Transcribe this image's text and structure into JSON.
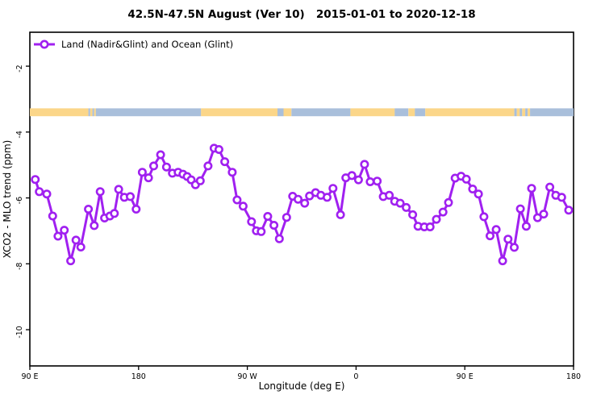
{
  "header": {
    "title": "42.5N-47.5N August (Ver 10)   2015-01-01 to 2020-12-18"
  },
  "legend": {
    "label": "Land (Nadir&Glint) and Ocean (Glint)"
  },
  "axes": {
    "xlabel": "Longitude (deg E)",
    "ylabel": "XCO2 - MLO trend (ppm)",
    "x_ticks": [
      {
        "lon": 90,
        "label": "90 E"
      },
      {
        "lon": 180,
        "label": "180"
      },
      {
        "lon": 270,
        "label": "90 W"
      },
      {
        "lon": 360,
        "label": "0"
      },
      {
        "lon": 450,
        "label": "90 E"
      },
      {
        "lon": 540,
        "label": "180"
      }
    ],
    "y_ticks": [
      {
        "value": -2,
        "label": "-2"
      },
      {
        "value": -4,
        "label": "-4"
      },
      {
        "value": -6,
        "label": "-6"
      },
      {
        "value": -8,
        "label": "-8"
      },
      {
        "value": -10,
        "label": "-10"
      }
    ]
  },
  "colors": {
    "series": "#A020F0",
    "marker_fill": "#FFFFFF",
    "band_land": "#FBD689",
    "band_ocean": "#A9BFDB",
    "axis": "#000000"
  },
  "chart_data": {
    "type": "line",
    "title": "42.5N-47.5N August (Ver 10)   2015-01-01 to 2020-12-18",
    "xlabel": "Longitude (deg E)",
    "ylabel": "XCO2 - MLO trend (ppm)",
    "xlim": [
      90,
      540
    ],
    "ylim": [
      -11.1,
      -0.97
    ],
    "grid": false,
    "legend_position": "top-left",
    "marker": "open-circle",
    "series": [
      {
        "name": "Land (Nadir&Glint) and Ocean (Glint)",
        "x": [
          94.5,
          97.8,
          104.0,
          108.9,
          113.3,
          118.5,
          123.8,
          128.2,
          132.2,
          138.5,
          143.3,
          148.2,
          151.8,
          156.2,
          160.0,
          163.5,
          168.2,
          173.1,
          178.0,
          183.1,
          188.2,
          192.5,
          198.2,
          203.1,
          208.0,
          212.7,
          216.7,
          220.2,
          223.5,
          227.1,
          231.1,
          237.5,
          242.5,
          246.5,
          251.3,
          257.5,
          261.5,
          266.5,
          273.5,
          277.5,
          281.5,
          286.9,
          292.0,
          296.5,
          302.5,
          307.5,
          312.0,
          317.5,
          321.5,
          326.5,
          330.9,
          336.0,
          340.9,
          347.1,
          351.5,
          356.5,
          362.0,
          367.0,
          371.7,
          377.5,
          382.5,
          387.5,
          392.0,
          396.5,
          401.5,
          406.9,
          411.3,
          416.5,
          421.3,
          426.5,
          432.0,
          436.5,
          442.0,
          446.9,
          451.3,
          456.5,
          461.3,
          465.8,
          470.9,
          476.0,
          481.3,
          485.8,
          490.9,
          496.0,
          500.9,
          505.3,
          510.2,
          515.3,
          520.4,
          525.3,
          530.2,
          536.0
        ],
        "values": [
          -5.44,
          -5.81,
          -5.88,
          -6.55,
          -7.16,
          -6.98,
          -7.91,
          -7.28,
          -7.49,
          -6.34,
          -6.84,
          -5.81,
          -6.61,
          -6.55,
          -6.47,
          -5.74,
          -5.98,
          -5.96,
          -6.34,
          -5.22,
          -5.39,
          -5.03,
          -4.69,
          -5.06,
          -5.25,
          -5.22,
          -5.28,
          -5.35,
          -5.45,
          -5.6,
          -5.48,
          -5.03,
          -4.49,
          -4.53,
          -4.9,
          -5.22,
          -6.06,
          -6.25,
          -6.72,
          -7.0,
          -7.02,
          -6.56,
          -6.83,
          -7.24,
          -6.59,
          -5.95,
          -6.04,
          -6.16,
          -5.94,
          -5.84,
          -5.92,
          -5.98,
          -5.71,
          -6.51,
          -5.39,
          -5.32,
          -5.45,
          -4.98,
          -5.51,
          -5.49,
          -5.96,
          -5.92,
          -6.1,
          -6.16,
          -6.29,
          -6.51,
          -6.86,
          -6.88,
          -6.88,
          -6.65,
          -6.43,
          -6.14,
          -5.4,
          -5.34,
          -5.43,
          -5.73,
          -5.88,
          -6.57,
          -7.15,
          -6.96,
          -7.91,
          -7.25,
          -7.5,
          -6.33,
          -6.86,
          -5.71,
          -6.6,
          -6.49,
          -5.67,
          -5.92,
          -5.98,
          -6.37
        ]
      }
    ],
    "surface_type_band": {
      "description": "horizontal strip showing land (tan) vs ocean (blue) along longitude",
      "value_top": -3.28,
      "value_bottom": -3.52,
      "segments": [
        {
          "from": 90,
          "to": 138.5,
          "type": "land"
        },
        {
          "from": 138.5,
          "to": 140.0,
          "type": "ocean"
        },
        {
          "from": 140.0,
          "to": 141.8,
          "type": "land"
        },
        {
          "from": 141.8,
          "to": 143.2,
          "type": "ocean"
        },
        {
          "from": 143.2,
          "to": 144.6,
          "type": "land"
        },
        {
          "from": 144.6,
          "to": 231.7,
          "type": "ocean"
        },
        {
          "from": 231.7,
          "to": 295.0,
          "type": "land"
        },
        {
          "from": 295.0,
          "to": 300.0,
          "type": "ocean"
        },
        {
          "from": 300.0,
          "to": 306.5,
          "type": "land"
        },
        {
          "from": 306.5,
          "to": 355.3,
          "type": "ocean"
        },
        {
          "from": 355.3,
          "to": 392.0,
          "type": "land"
        },
        {
          "from": 392.0,
          "to": 403.3,
          "type": "ocean"
        },
        {
          "from": 403.3,
          "to": 408.7,
          "type": "land"
        },
        {
          "from": 408.7,
          "to": 417.3,
          "type": "ocean"
        },
        {
          "from": 417.3,
          "to": 491.0,
          "type": "land"
        },
        {
          "from": 491.0,
          "to": 493.0,
          "type": "ocean"
        },
        {
          "from": 493.0,
          "to": 495.5,
          "type": "land"
        },
        {
          "from": 495.5,
          "to": 497.5,
          "type": "ocean"
        },
        {
          "from": 497.5,
          "to": 500.0,
          "type": "land"
        },
        {
          "from": 500.0,
          "to": 502.0,
          "type": "ocean"
        },
        {
          "from": 502.0,
          "to": 504.0,
          "type": "land"
        },
        {
          "from": 504.0,
          "to": 540.0,
          "type": "ocean"
        }
      ]
    }
  }
}
